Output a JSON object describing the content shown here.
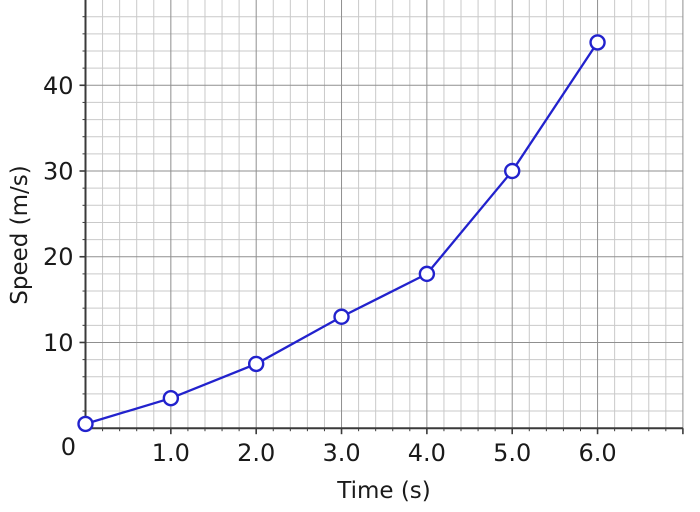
{
  "chart_data": {
    "type": "line",
    "title": "",
    "xlabel": "Time (s)",
    "ylabel": "Speed (m/s)",
    "origin_label": "0",
    "x": [
      0,
      1,
      2,
      3,
      4,
      5,
      6
    ],
    "series": [
      {
        "name": "speed",
        "values": [
          0.5,
          3.5,
          7.5,
          13,
          18,
          30,
          45
        ]
      }
    ],
    "x_ticks": [
      1,
      2,
      3,
      4,
      5,
      6
    ],
    "x_tick_labels": [
      "1.0",
      "2.0",
      "3.0",
      "4.0",
      "5.0",
      "6.0"
    ],
    "y_ticks": [
      10,
      20,
      30,
      40
    ],
    "y_tick_labels": [
      "10",
      "20",
      "30",
      "40"
    ],
    "xlim": [
      0,
      7
    ],
    "ylim": [
      0,
      50
    ],
    "minor_step_x": 0.2,
    "minor_step_y": 2,
    "grid": "major+minor",
    "legend": "none",
    "marker": "open-circle",
    "line_color": "#2222cd",
    "marker_fill": "#ffffff",
    "text_color": "#1a1a1a",
    "minor_grid_color": "#c9c9c9",
    "major_grid_color": "#8f8f8f",
    "spine_color": "#3a3a3a"
  }
}
